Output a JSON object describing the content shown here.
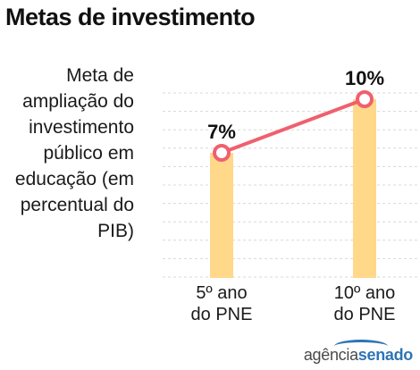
{
  "title": "Metas de investimento",
  "brand": {
    "part1": "agência",
    "part2": "senado"
  },
  "colors": {
    "bar": "#ffd88a",
    "line": "#f0606e",
    "grid": "#d8d8d8",
    "brand": "#2f74b5"
  },
  "chart_data": {
    "type": "bar",
    "title": "Metas de investimento",
    "ylabel": "Meta de ampliação do investimento público em educação (em percentual do PIB)",
    "xlabel": "",
    "categories": [
      "5º ano do PNE",
      "10º ano do PNE"
    ],
    "category_lines": [
      [
        "5º ano",
        "do PNE"
      ],
      [
        "10º ano",
        "do PNE"
      ]
    ],
    "values": [
      7,
      10
    ],
    "data_labels": [
      "7%",
      "10%"
    ],
    "overlay_line": true,
    "grid": true,
    "ylim": [
      0,
      11
    ]
  }
}
